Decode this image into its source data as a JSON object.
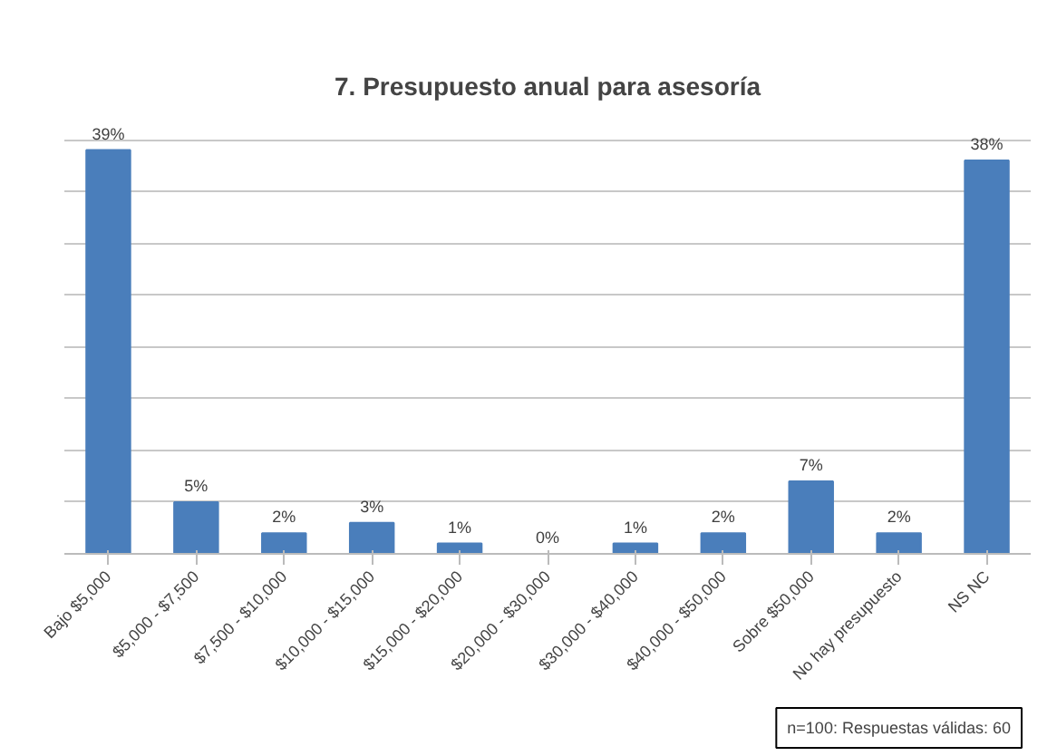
{
  "chart_data": {
    "type": "bar",
    "title": "7. Presupuesto anual para asesoría",
    "categories": [
      "Bajo $5,000",
      "$5,000 - $7,500",
      "$7,500 - $10,000",
      "$10,000 - $15,000",
      "$15,000 - $20,000",
      "$20,000 - $30,000",
      "$30,000 - $40,000",
      "$40,000 - $50,000",
      "Sobre $50,000",
      "No hay presupuesto",
      "NS NC"
    ],
    "values": [
      39,
      5,
      2,
      3,
      1,
      0,
      1,
      2,
      7,
      2,
      38
    ],
    "value_labels": [
      "39%",
      "5%",
      "2%",
      "3%",
      "1%",
      "0%",
      "1%",
      "2%",
      "7%",
      "2%",
      "38%"
    ],
    "color": "#4a7ebb",
    "tick_labels": "x",
    "grid": "y",
    "annotations": [
      "n=100: Respuestas válidas: 60"
    ]
  }
}
